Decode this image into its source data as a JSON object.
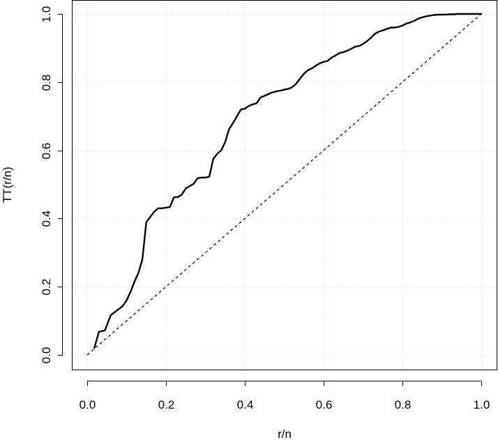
{
  "chart_data": {
    "type": "line",
    "title": "",
    "xlabel": "r/n",
    "ylabel": "TT(r/n)",
    "xlim": [
      0,
      1
    ],
    "ylim": [
      0,
      1
    ],
    "x_ticks": [
      "0.0",
      "0.2",
      "0.4",
      "0.6",
      "0.8",
      "1.0"
    ],
    "y_ticks": [
      "0.0",
      "0.2",
      "0.4",
      "0.6",
      "0.8",
      "1.0"
    ],
    "grid": true,
    "legend": "none",
    "colors": {
      "line": "#000000",
      "reference": "#000000",
      "grid": "#d3d3d3"
    },
    "series": [
      {
        "style": "solid",
        "x": [
          0.018,
          0.03,
          0.045,
          0.06,
          0.075,
          0.09,
          0.1,
          0.11,
          0.12,
          0.13,
          0.14,
          0.15,
          0.16,
          0.17,
          0.18,
          0.19,
          0.2,
          0.21,
          0.22,
          0.23,
          0.24,
          0.25,
          0.26,
          0.27,
          0.28,
          0.29,
          0.3,
          0.31,
          0.32,
          0.33,
          0.34,
          0.35,
          0.36,
          0.37,
          0.38,
          0.39,
          0.4,
          0.41,
          0.42,
          0.43,
          0.44,
          0.45,
          0.46,
          0.47,
          0.48,
          0.49,
          0.5,
          0.51,
          0.52,
          0.53,
          0.54,
          0.55,
          0.56,
          0.57,
          0.58,
          0.59,
          0.6,
          0.61,
          0.62,
          0.63,
          0.64,
          0.65,
          0.66,
          0.67,
          0.68,
          0.69,
          0.7,
          0.71,
          0.72,
          0.73,
          0.74,
          0.75,
          0.76,
          0.77,
          0.78,
          0.79,
          0.8,
          0.81,
          0.82,
          0.83,
          0.84,
          0.85,
          0.86,
          0.87,
          0.88,
          0.89,
          0.9,
          0.91,
          0.92,
          0.93,
          0.94,
          0.95,
          0.96,
          0.97,
          0.98,
          0.99,
          1.0
        ],
        "y": [
          0.02,
          0.068,
          0.072,
          0.117,
          0.13,
          0.143,
          0.16,
          0.185,
          0.215,
          0.24,
          0.28,
          0.39,
          0.405,
          0.42,
          0.43,
          0.43,
          0.432,
          0.434,
          0.462,
          0.463,
          0.47,
          0.488,
          0.495,
          0.502,
          0.518,
          0.52,
          0.52,
          0.523,
          0.575,
          0.59,
          0.6,
          0.624,
          0.662,
          0.68,
          0.7,
          0.72,
          0.722,
          0.73,
          0.735,
          0.738,
          0.755,
          0.76,
          0.765,
          0.77,
          0.773,
          0.775,
          0.778,
          0.78,
          0.785,
          0.795,
          0.81,
          0.825,
          0.835,
          0.84,
          0.848,
          0.855,
          0.86,
          0.862,
          0.872,
          0.878,
          0.885,
          0.888,
          0.892,
          0.898,
          0.904,
          0.906,
          0.912,
          0.92,
          0.93,
          0.942,
          0.948,
          0.952,
          0.956,
          0.96,
          0.96,
          0.962,
          0.966,
          0.972,
          0.975,
          0.98,
          0.986,
          0.99,
          0.993,
          0.995,
          0.997,
          0.998,
          0.998,
          0.998,
          0.999,
          0.999,
          1.0,
          1.0,
          1.0,
          1.0,
          1.0,
          1.0,
          1.0
        ]
      },
      {
        "style": "dashed",
        "x": [
          0,
          1
        ],
        "y": [
          0,
          1
        ]
      }
    ]
  }
}
